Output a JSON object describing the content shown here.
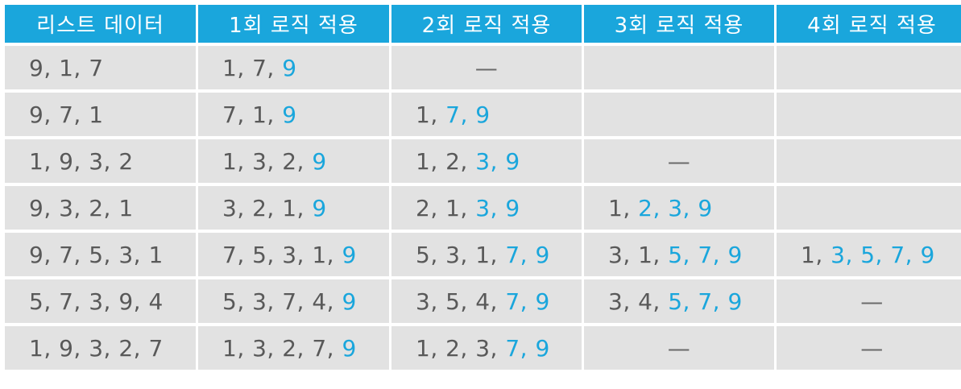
{
  "headers": [
    "리스트 데이터",
    "1회 로직 적용",
    "2회 로직 적용",
    "3회 로직 적용",
    "4회 로직 적용"
  ],
  "accent_color": "#1aa6dc",
  "rows": [
    [
      {
        "plain": "9, 1, 7",
        "hl": ""
      },
      {
        "plain": "1, 7, ",
        "hl": "9"
      },
      {
        "dash": "—"
      },
      {
        "plain": "",
        "hl": ""
      },
      {
        "plain": "",
        "hl": ""
      }
    ],
    [
      {
        "plain": "9, 7, 1",
        "hl": ""
      },
      {
        "plain": "7, 1, ",
        "hl": "9"
      },
      {
        "plain": "1, ",
        "hl": "7, 9"
      },
      {
        "plain": "",
        "hl": ""
      },
      {
        "plain": "",
        "hl": ""
      }
    ],
    [
      {
        "plain": "1, 9, 3, 2",
        "hl": ""
      },
      {
        "plain": "1, 3, 2, ",
        "hl": "9"
      },
      {
        "plain": "1, 2, ",
        "hl": "3, 9"
      },
      {
        "dash": "—"
      },
      {
        "plain": "",
        "hl": ""
      }
    ],
    [
      {
        "plain": "9, 3, 2, 1",
        "hl": ""
      },
      {
        "plain": "3, 2, 1, ",
        "hl": "9"
      },
      {
        "plain": "2, 1, ",
        "hl": "3, 9"
      },
      {
        "plain": "1, ",
        "hl": "2, 3, 9"
      },
      {
        "plain": "",
        "hl": ""
      }
    ],
    [
      {
        "plain": "9, 7, 5, 3, 1",
        "hl": ""
      },
      {
        "plain": "7, 5, 3, 1, ",
        "hl": "9"
      },
      {
        "plain": "5, 3, 1, ",
        "hl": "7, 9"
      },
      {
        "plain": "3, 1, ",
        "hl": "5, 7, 9"
      },
      {
        "plain": "1, ",
        "hl": "3, 5, 7, 9"
      }
    ],
    [
      {
        "plain": "5, 7, 3, 9, 4",
        "hl": ""
      },
      {
        "plain": "5, 3, 7, 4, ",
        "hl": "9"
      },
      {
        "plain": "3, 5, 4, ",
        "hl": "7, 9"
      },
      {
        "plain": "3, 4, ",
        "hl": "5, 7, 9"
      },
      {
        "dash": "—"
      }
    ],
    [
      {
        "plain": "1, 9, 3, 2, 7",
        "hl": ""
      },
      {
        "plain": "1, 3, 2, 7, ",
        "hl": "9"
      },
      {
        "plain": "1, 2, 3, ",
        "hl": "7, 9"
      },
      {
        "dash": "—"
      },
      {
        "dash": "—"
      }
    ]
  ]
}
